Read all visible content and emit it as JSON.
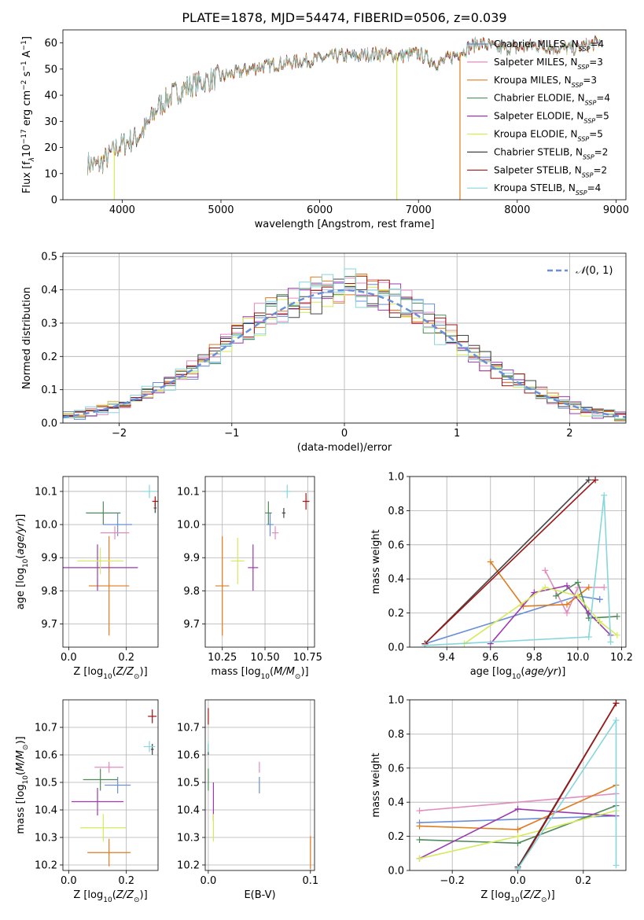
{
  "title": "PLATE=1878, MJD=54474, FIBERID=0506, z=0.039",
  "colors": {
    "Chabrier MILES": "#6a8fd8",
    "Salpeter MILES": "#e28cbe",
    "Kroupa MILES": "#e07b1e",
    "Chabrier ELODIE": "#4f8a5a",
    "Salpeter ELODIE": "#9a3aae",
    "Kroupa ELODIE": "#d6ea5a",
    "Chabrier STELIB": "#444444",
    "Salpeter STELIB": "#a01414",
    "Kroupa STELIB": "#86d6dc",
    "gaussian": "#6a8fd8"
  },
  "chart_data": [
    {
      "type": "line",
      "panel": "spectrum",
      "xlabel": "wavelength [Angstrom, rest frame]",
      "ylabel": "Flux [f_λ 10^-17 erg cm^-2 s^-1 A^-1]",
      "xlim": [
        3400,
        9100
      ],
      "ylim": [
        0,
        65
      ],
      "xticks": [
        4000,
        5000,
        6000,
        7000,
        8000,
        9000
      ],
      "yticks": [
        0,
        10,
        20,
        30,
        40,
        50,
        60
      ],
      "grid": false,
      "legend_position": "top-right",
      "legend": [
        {
          "name": "Chabrier MILES",
          "nssp": "4"
        },
        {
          "name": "Salpeter MILES",
          "nssp": "3"
        },
        {
          "name": "Kroupa MILES",
          "nssp": "3"
        },
        {
          "name": "Chabrier ELODIE",
          "nssp": "4"
        },
        {
          "name": "Salpeter ELODIE",
          "nssp": "5"
        },
        {
          "name": "Kroupa ELODIE",
          "nssp": "5"
        },
        {
          "name": "Chabrier STELIB",
          "nssp": "2"
        },
        {
          "name": "Salpeter STELIB",
          "nssp": "2"
        },
        {
          "name": "Kroupa STELIB",
          "nssp": "4"
        }
      ],
      "continuum": {
        "x": [
          3650,
          3750,
          3850,
          3950,
          4050,
          4150,
          4250,
          4350,
          4500,
          4650,
          4800,
          5000,
          5200,
          5400,
          5600,
          5800,
          6000,
          6200,
          6400,
          6600,
          6800,
          7000,
          7200,
          7400,
          7600,
          7800,
          8000,
          8200,
          8400,
          8600,
          8800
        ],
        "y": [
          14,
          13,
          16,
          20,
          22,
          24,
          28,
          35,
          40,
          43,
          45,
          47,
          49,
          51,
          52,
          53,
          54,
          55,
          55,
          56,
          55,
          56,
          52,
          56,
          60,
          58,
          58,
          59,
          58,
          58,
          60
        ]
      },
      "spikes": [
        {
          "x": 3920,
          "y": 0
        },
        {
          "x": 6780,
          "y": 0
        },
        {
          "x": 7420,
          "y": 0
        }
      ]
    },
    {
      "type": "histogram",
      "panel": "residuals",
      "xlabel": "(data-model)/error",
      "ylabel": "Normed distribution",
      "xlim": [
        -2.5,
        2.5
      ],
      "ylim": [
        0,
        0.51
      ],
      "xticks": [
        -2,
        -1,
        0,
        1,
        2
      ],
      "yticks": [
        0.0,
        0.1,
        0.2,
        0.3,
        0.4,
        0.5
      ],
      "grid": true,
      "bin_width": 0.1,
      "reference_curve": {
        "name": "N(0,1)",
        "style": "dashed",
        "legend_position": "top-right"
      }
    },
    {
      "type": "scatter",
      "panel": "age-vs-Z",
      "xlabel": "Z [log10(Z/Z⊙)]",
      "ylabel": "age [log10(age/yr)]",
      "xlim": [
        -0.02,
        0.31
      ],
      "ylim": [
        9.63,
        10.145
      ],
      "xticks": [
        0.0,
        0.2
      ],
      "yticks": [
        9.7,
        9.8,
        9.9,
        10.0,
        10.1
      ],
      "grid": true,
      "points": [
        {
          "model": "Chabrier MILES",
          "x": 0.17,
          "y": 10.0,
          "xerr": 0.05,
          "yerr": 0.035
        },
        {
          "model": "Salpeter MILES",
          "x": 0.16,
          "y": 9.975,
          "xerr": 0.05,
          "yerr": 0.02
        },
        {
          "model": "Kroupa MILES",
          "x": 0.14,
          "y": 9.815,
          "xerr": 0.07,
          "yerr": 0.15
        },
        {
          "model": "Chabrier ELODIE",
          "x": 0.12,
          "y": 10.035,
          "xerr": 0.06,
          "yerr": 0.035
        },
        {
          "model": "Salpeter ELODIE",
          "x": 0.1,
          "y": 9.87,
          "xerr": 0.14,
          "yerr": 0.07
        },
        {
          "model": "Kroupa ELODIE",
          "x": 0.11,
          "y": 9.89,
          "xerr": 0.08,
          "yerr": 0.04
        },
        {
          "model": "Chabrier STELIB",
          "x": 0.3,
          "y": 10.05,
          "xerr": 0.005,
          "yerr": 0.015
        },
        {
          "model": "Salpeter STELIB",
          "x": 0.3,
          "y": 10.07,
          "xerr": 0.01,
          "yerr": 0.015
        },
        {
          "model": "Kroupa STELIB",
          "x": 0.28,
          "y": 10.1,
          "xerr": 0.025,
          "yerr": 0.02
        }
      ]
    },
    {
      "type": "scatter",
      "panel": "age-vs-mass",
      "xlabel": "mass [log10(M/M⊙)]",
      "ylabel": "",
      "xlim": [
        10.15,
        10.79
      ],
      "ylim": [
        9.63,
        10.145
      ],
      "xticks": [
        10.25,
        10.5,
        10.75
      ],
      "yticks": [
        9.7,
        9.8,
        9.9,
        10.0,
        10.1
      ],
      "grid": true,
      "points": [
        {
          "model": "Chabrier MILES",
          "x": 10.53,
          "y": 10.0,
          "xerr": 0.02,
          "yerr": 0.035
        },
        {
          "model": "Salpeter MILES",
          "x": 10.56,
          "y": 9.975,
          "xerr": 0.02,
          "yerr": 0.02
        },
        {
          "model": "Kroupa MILES",
          "x": 10.25,
          "y": 9.815,
          "xerr": 0.04,
          "yerr": 0.15
        },
        {
          "model": "Chabrier ELODIE",
          "x": 10.52,
          "y": 10.035,
          "xerr": 0.02,
          "yerr": 0.035
        },
        {
          "model": "Salpeter ELODIE",
          "x": 10.43,
          "y": 9.87,
          "xerr": 0.03,
          "yerr": 0.07
        },
        {
          "model": "Kroupa ELODIE",
          "x": 10.34,
          "y": 9.89,
          "xerr": 0.04,
          "yerr": 0.07
        },
        {
          "model": "Chabrier STELIB",
          "x": 10.61,
          "y": 10.035,
          "xerr": 0.01,
          "yerr": 0.015
        },
        {
          "model": "Salpeter STELIB",
          "x": 10.74,
          "y": 10.07,
          "xerr": 0.02,
          "yerr": 0.025
        },
        {
          "model": "Kroupa STELIB",
          "x": 10.63,
          "y": 10.1,
          "xerr": 0.02,
          "yerr": 0.02
        }
      ]
    },
    {
      "type": "line",
      "panel": "mass-weight-vs-age",
      "xlabel": "age [log10(age/yr)]",
      "ylabel": "mass weight",
      "xlim": [
        9.23,
        10.22
      ],
      "ylim": [
        0,
        1.0
      ],
      "xticks": [
        9.4,
        9.6,
        9.8,
        10.0,
        10.2
      ],
      "yticks": [
        0.0,
        0.2,
        0.4,
        0.6,
        0.8,
        1.0
      ],
      "grid": true,
      "series": [
        {
          "model": "Chabrier MILES",
          "x": [
            9.3,
            10.0,
            10.1,
            10.1
          ],
          "y": [
            0.02,
            0.3,
            0.28,
            0.28
          ]
        },
        {
          "model": "Salpeter MILES",
          "x": [
            9.85,
            9.95,
            10.0,
            10.12
          ],
          "y": [
            0.45,
            0.2,
            0.35,
            0.35
          ]
        },
        {
          "model": "Kroupa MILES",
          "x": [
            9.6,
            9.75,
            9.95,
            10.05
          ],
          "y": [
            0.5,
            0.24,
            0.25,
            0.35
          ]
        },
        {
          "model": "Chabrier ELODIE",
          "x": [
            9.9,
            10.0,
            10.05,
            10.18
          ],
          "y": [
            0.3,
            0.38,
            0.17,
            0.18
          ]
        },
        {
          "model": "Salpeter ELODIE",
          "x": [
            9.6,
            9.8,
            9.95,
            10.05,
            10.15
          ],
          "y": [
            0.02,
            0.32,
            0.36,
            0.2,
            0.07
          ]
        },
        {
          "model": "Kroupa ELODIE",
          "x": [
            9.48,
            9.85,
            10.0,
            10.1,
            10.18
          ],
          "y": [
            0.02,
            0.35,
            0.3,
            0.15,
            0.07
          ]
        },
        {
          "model": "Chabrier STELIB",
          "x": [
            9.3,
            10.05
          ],
          "y": [
            0.02,
            0.98
          ]
        },
        {
          "model": "Salpeter STELIB",
          "x": [
            9.3,
            10.08
          ],
          "y": [
            0.02,
            0.98
          ]
        },
        {
          "model": "Kroupa STELIB",
          "x": [
            9.3,
            10.05,
            10.12,
            10.15
          ],
          "y": [
            0.01,
            0.06,
            0.89,
            0.03
          ]
        }
      ]
    },
    {
      "type": "scatter",
      "panel": "mass-vs-Z",
      "xlabel": "Z [log10(Z/Z⊙)]",
      "ylabel": "mass [log10(M/M⊙)]",
      "xlim": [
        -0.02,
        0.31
      ],
      "ylim": [
        10.18,
        10.8
      ],
      "xticks": [
        0.0,
        0.2
      ],
      "yticks": [
        10.2,
        10.3,
        10.4,
        10.5,
        10.6,
        10.7
      ],
      "grid": true,
      "points": [
        {
          "model": "Chabrier MILES",
          "x": 0.17,
          "y": 10.49,
          "xerr": 0.045,
          "yerr": 0.03
        },
        {
          "model": "Salpeter MILES",
          "x": 0.14,
          "y": 10.555,
          "xerr": 0.05,
          "yerr": 0.02
        },
        {
          "model": "Kroupa MILES",
          "x": 0.14,
          "y": 10.245,
          "xerr": 0.075,
          "yerr": 0.05
        },
        {
          "model": "Chabrier ELODIE",
          "x": 0.11,
          "y": 10.51,
          "xerr": 0.06,
          "yerr": 0.04
        },
        {
          "model": "Salpeter ELODIE",
          "x": 0.1,
          "y": 10.43,
          "xerr": 0.09,
          "yerr": 0.05
        },
        {
          "model": "Kroupa ELODIE",
          "x": 0.12,
          "y": 10.335,
          "xerr": 0.08,
          "yerr": 0.05
        },
        {
          "model": "Chabrier STELIB",
          "x": 0.29,
          "y": 10.62,
          "xerr": 0.005,
          "yerr": 0.02
        },
        {
          "model": "Salpeter STELIB",
          "x": 0.29,
          "y": 10.74,
          "xerr": 0.015,
          "yerr": 0.025
        },
        {
          "model": "Kroupa STELIB",
          "x": 0.28,
          "y": 10.63,
          "xerr": 0.02,
          "yerr": 0.02
        }
      ]
    },
    {
      "type": "scatter",
      "panel": "mass-vs-EBV",
      "xlabel": "E(B-V)",
      "ylabel": "",
      "xlim": [
        -0.003,
        0.104
      ],
      "ylim": [
        10.18,
        10.8
      ],
      "xticks": [
        0.0,
        0.1
      ],
      "yticks": [
        10.2,
        10.3,
        10.4,
        10.5,
        10.6,
        10.7
      ],
      "grid": true,
      "points": [
        {
          "model": "Chabrier MILES",
          "x": 0.05,
          "y": 10.49,
          "xerr": 0,
          "yerr": 0.03
        },
        {
          "model": "Salpeter MILES",
          "x": 0.05,
          "y": 10.555,
          "xerr": 0,
          "yerr": 0.02
        },
        {
          "model": "Kroupa MILES",
          "x": 0.1,
          "y": 10.245,
          "xerr": 0,
          "yerr": 0.06
        },
        {
          "model": "Chabrier ELODIE",
          "x": 0.0,
          "y": 10.51,
          "xerr": 0,
          "yerr": 0.04
        },
        {
          "model": "Salpeter ELODIE",
          "x": 0.005,
          "y": 10.43,
          "xerr": 0,
          "yerr": 0.07
        },
        {
          "model": "Kroupa ELODIE",
          "x": 0.005,
          "y": 10.335,
          "xerr": 0,
          "yerr": 0.05
        },
        {
          "model": "Chabrier STELIB",
          "x": 0.0,
          "y": 10.62,
          "xerr": 0,
          "yerr": 0.02
        },
        {
          "model": "Salpeter STELIB",
          "x": 0.0,
          "y": 10.74,
          "xerr": 0,
          "yerr": 0.03
        },
        {
          "model": "Kroupa STELIB",
          "x": 0.0,
          "y": 10.63,
          "xerr": 0,
          "yerr": 0.02
        }
      ]
    },
    {
      "type": "line",
      "panel": "mass-weight-vs-Z",
      "xlabel": "Z [log10(Z/Z⊙)]",
      "ylabel": "mass weight",
      "xlim": [
        -0.33,
        0.33
      ],
      "ylim": [
        0,
        1.0
      ],
      "xticks": [
        -0.2,
        0.0,
        0.2
      ],
      "yticks": [
        0.0,
        0.2,
        0.4,
        0.6,
        0.8,
        1.0
      ],
      "grid": true,
      "series": [
        {
          "model": "Chabrier MILES",
          "x": [
            -0.3,
            0.3
          ],
          "y": [
            0.28,
            0.32
          ]
        },
        {
          "model": "Salpeter MILES",
          "x": [
            -0.3,
            0.3
          ],
          "y": [
            0.35,
            0.45
          ]
        },
        {
          "model": "Kroupa MILES",
          "x": [
            -0.3,
            0.0,
            0.3
          ],
          "y": [
            0.26,
            0.24,
            0.5
          ]
        },
        {
          "model": "Chabrier ELODIE",
          "x": [
            -0.3,
            0.0,
            0.3
          ],
          "y": [
            0.18,
            0.16,
            0.38
          ]
        },
        {
          "model": "Salpeter ELODIE",
          "x": [
            -0.3,
            0.0,
            0.3
          ],
          "y": [
            0.07,
            0.36,
            0.32
          ]
        },
        {
          "model": "Kroupa ELODIE",
          "x": [
            -0.3,
            0.0,
            0.3
          ],
          "y": [
            0.07,
            0.2,
            0.35
          ]
        },
        {
          "model": "Chabrier STELIB",
          "x": [
            0.0,
            0.3
          ],
          "y": [
            0.02,
            0.98
          ]
        },
        {
          "model": "Salpeter STELIB",
          "x": [
            0.0,
            0.3
          ],
          "y": [
            0.01,
            0.98
          ]
        },
        {
          "model": "Kroupa STELIB",
          "x": [
            0.0,
            0.3,
            0.3
          ],
          "y": [
            0.01,
            0.88,
            0.03
          ]
        }
      ]
    }
  ]
}
